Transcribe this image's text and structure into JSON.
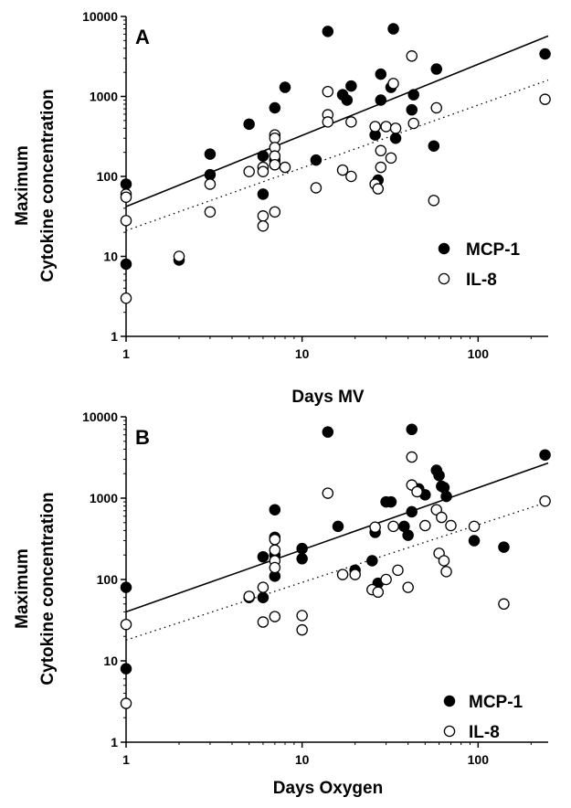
{
  "chart_data": [
    {
      "type": "scatter",
      "panel_label": "A",
      "xlabel": "Days MV",
      "ylabel": [
        "Maximum",
        "Cytokine concentration"
      ],
      "x_scale": "log",
      "y_scale": "log",
      "xlim": [
        1,
        250
      ],
      "ylim": [
        1,
        10000
      ],
      "x_ticks": [
        1,
        10,
        100
      ],
      "y_ticks": [
        1,
        10,
        100,
        1000,
        10000
      ],
      "legend_position": "bottom-right",
      "series": [
        {
          "name": "MCP-1",
          "marker": "filled-circle",
          "points": [
            [
              1,
              80
            ],
            [
              1,
              8
            ],
            [
              2,
              9
            ],
            [
              3,
              190
            ],
            [
              3,
              105
            ],
            [
              5,
              450
            ],
            [
              6,
              180
            ],
            [
              6,
              60
            ],
            [
              7,
              720
            ],
            [
              7,
              160
            ],
            [
              7,
              140
            ],
            [
              8,
              1300
            ],
            [
              12,
              160
            ],
            [
              14,
              6500
            ],
            [
              17,
              1050
            ],
            [
              18,
              900
            ],
            [
              19,
              1350
            ],
            [
              26,
              330
            ],
            [
              27,
              90
            ],
            [
              28,
              1900
            ],
            [
              28,
              900
            ],
            [
              32,
              1300
            ],
            [
              33,
              7000
            ],
            [
              34,
              300
            ],
            [
              42,
              680
            ],
            [
              43,
              1050
            ],
            [
              56,
              240
            ],
            [
              58,
              2200
            ],
            [
              240,
              3400
            ]
          ],
          "fit": {
            "type": "solid",
            "from": [
              1,
              42
            ],
            "to": [
              250,
              5700
            ]
          }
        },
        {
          "name": "IL-8",
          "marker": "open-circle",
          "points": [
            [
              1,
              60
            ],
            [
              1,
              55
            ],
            [
              1,
              28
            ],
            [
              1,
              3
            ],
            [
              2,
              10
            ],
            [
              3,
              80
            ],
            [
              3,
              36
            ],
            [
              5,
              115
            ],
            [
              6,
              130
            ],
            [
              6,
              115
            ],
            [
              6,
              32
            ],
            [
              6,
              24
            ],
            [
              7,
              330
            ],
            [
              7,
              300
            ],
            [
              7,
              230
            ],
            [
              7,
              180
            ],
            [
              7,
              140
            ],
            [
              7,
              36
            ],
            [
              8,
              130
            ],
            [
              12,
              72
            ],
            [
              14,
              1150
            ],
            [
              14,
              590
            ],
            [
              14,
              480
            ],
            [
              17,
              120
            ],
            [
              19,
              480
            ],
            [
              19,
              100
            ],
            [
              26,
              420
            ],
            [
              26,
              80
            ],
            [
              27,
              70
            ],
            [
              28,
              210
            ],
            [
              28,
              130
            ],
            [
              30,
              420
            ],
            [
              32,
              170
            ],
            [
              33,
              1450
            ],
            [
              34,
              400
            ],
            [
              42,
              3200
            ],
            [
              43,
              460
            ],
            [
              56,
              50
            ],
            [
              58,
              720
            ],
            [
              240,
              920
            ]
          ],
          "fit": {
            "type": "dotted",
            "from": [
              1,
              21
            ],
            "to": [
              250,
              1600
            ]
          }
        }
      ]
    },
    {
      "type": "scatter",
      "panel_label": "B",
      "xlabel": "Days Oxygen",
      "ylabel": [
        "Maximum",
        "Cytokine concentration"
      ],
      "x_scale": "log",
      "y_scale": "log",
      "xlim": [
        1,
        250
      ],
      "ylim": [
        1,
        10000
      ],
      "x_ticks": [
        1,
        10,
        100
      ],
      "y_ticks": [
        1,
        10,
        100,
        1000,
        10000
      ],
      "legend_position": "bottom-right",
      "series": [
        {
          "name": "MCP-1",
          "marker": "filled-circle",
          "points": [
            [
              1,
              80
            ],
            [
              1,
              8
            ],
            [
              5,
              60
            ],
            [
              6,
              190
            ],
            [
              6,
              60
            ],
            [
              7,
              720
            ],
            [
              7,
              330
            ],
            [
              7,
              200
            ],
            [
              7,
              110
            ],
            [
              10,
              240
            ],
            [
              10,
              180
            ],
            [
              14,
              6500
            ],
            [
              16,
              450
            ],
            [
              20,
              130
            ],
            [
              25,
              170
            ],
            [
              26,
              380
            ],
            [
              27,
              90
            ],
            [
              30,
              900
            ],
            [
              32,
              900
            ],
            [
              38,
              450
            ],
            [
              40,
              350
            ],
            [
              42,
              7000
            ],
            [
              42,
              680
            ],
            [
              46,
              1300
            ],
            [
              50,
              1100
            ],
            [
              58,
              2200
            ],
            [
              60,
              1900
            ],
            [
              62,
              1400
            ],
            [
              64,
              1350
            ],
            [
              66,
              1050
            ],
            [
              95,
              300
            ],
            [
              140,
              250
            ],
            [
              240,
              3400
            ]
          ],
          "fit": {
            "type": "solid",
            "from": [
              1,
              40
            ],
            "to": [
              250,
              2700
            ]
          }
        },
        {
          "name": "IL-8",
          "marker": "open-circle",
          "points": [
            [
              1,
              28
            ],
            [
              1,
              3
            ],
            [
              5,
              62
            ],
            [
              6,
              80
            ],
            [
              6,
              30
            ],
            [
              7,
              310
            ],
            [
              7,
              230
            ],
            [
              7,
              170
            ],
            [
              7,
              140
            ],
            [
              7,
              35
            ],
            [
              10,
              36
            ],
            [
              10,
              24
            ],
            [
              14,
              1150
            ],
            [
              17,
              115
            ],
            [
              20,
              115
            ],
            [
              25,
              75
            ],
            [
              26,
              440
            ],
            [
              27,
              70
            ],
            [
              30,
              100
            ],
            [
              33,
              450
            ],
            [
              35,
              130
            ],
            [
              40,
              80
            ],
            [
              42,
              3200
            ],
            [
              42,
              1450
            ],
            [
              45,
              1200
            ],
            [
              50,
              460
            ],
            [
              58,
              720
            ],
            [
              60,
              210
            ],
            [
              62,
              580
            ],
            [
              64,
              170
            ],
            [
              66,
              125
            ],
            [
              70,
              460
            ],
            [
              95,
              450
            ],
            [
              140,
              50
            ],
            [
              240,
              920
            ]
          ],
          "fit": {
            "type": "dotted",
            "from": [
              1,
              18
            ],
            "to": [
              250,
              900
            ]
          }
        }
      ]
    }
  ]
}
